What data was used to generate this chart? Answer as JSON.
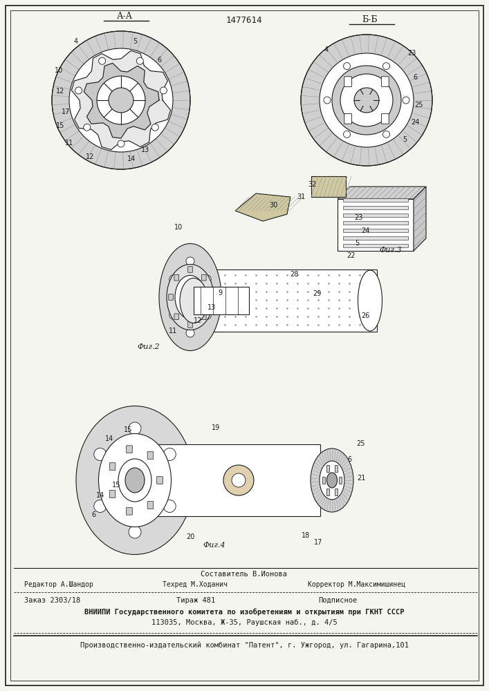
{
  "patent_number": "1477614",
  "title_aa": "А-А",
  "title_bb": "Б-Б",
  "fig2_label": "Фиг.2",
  "fig3_label": "Фиг.3",
  "fig4_label": "Фиг.4",
  "composer": "Составитель В.Ионова",
  "editor": "Редактор А.Шандор",
  "techred": "Техред М.Ходанич",
  "corrector": "Корректор М.Максимишинец",
  "order": "Заказ 2303/18",
  "circulation": "Тираж 481",
  "subscription": "Подписное",
  "vniipи_line1": "ВНИИПИ Государственного комитета по изобретениям и открытиям при ГКНТ СССР",
  "vniipи_line2": "113035, Москва, Ж-35, Раушская наб., д. 4/5",
  "publisher": "Производственно-издательский комбинат \"Патент\", г. Ужгород, ул. Гагарина,101",
  "bg_color": "#f5f5f0",
  "line_color": "#1a1a1a"
}
